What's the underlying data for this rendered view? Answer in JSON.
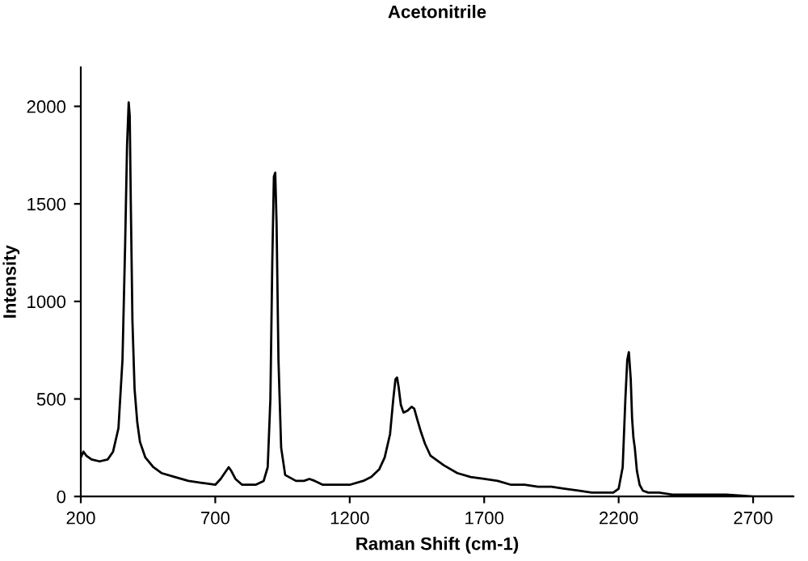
{
  "chart_data": {
    "type": "line",
    "title": "Acetonitrile",
    "xlabel": "Raman Shift (cm-1)",
    "ylabel": "Intensity",
    "xlim": [
      200,
      2850
    ],
    "ylim": [
      0,
      2200
    ],
    "xticks": [
      200,
      700,
      1200,
      1700,
      2200,
      2700
    ],
    "yticks": [
      0,
      500,
      1000,
      1500,
      2000
    ],
    "grid": false,
    "marker": "none",
    "line_style": "solid",
    "series": [
      {
        "color": "#000000",
        "x": [
          200,
          210,
          220,
          240,
          270,
          300,
          320,
          340,
          355,
          365,
          372,
          378,
          382,
          386,
          392,
          400,
          410,
          420,
          440,
          470,
          500,
          550,
          600,
          650,
          700,
          720,
          740,
          750,
          760,
          775,
          800,
          850,
          880,
          895,
          905,
          912,
          918,
          923,
          928,
          935,
          945,
          960,
          1000,
          1030,
          1050,
          1070,
          1100,
          1150,
          1200,
          1250,
          1280,
          1310,
          1330,
          1350,
          1362,
          1370,
          1376,
          1382,
          1390,
          1400,
          1415,
          1430,
          1440,
          1450,
          1465,
          1480,
          1500,
          1550,
          1600,
          1650,
          1700,
          1750,
          1800,
          1850,
          1900,
          1950,
          2000,
          2050,
          2100,
          2150,
          2180,
          2200,
          2215,
          2225,
          2232,
          2238,
          2245,
          2250,
          2255,
          2260,
          2268,
          2278,
          2290,
          2310,
          2350,
          2400,
          2500,
          2600,
          2700,
          2800,
          2850
        ],
        "values": [
          200,
          230,
          210,
          190,
          180,
          190,
          230,
          350,
          700,
          1300,
          1800,
          2020,
          1950,
          1500,
          900,
          550,
          380,
          280,
          200,
          150,
          120,
          100,
          80,
          70,
          60,
          90,
          130,
          150,
          130,
          90,
          60,
          60,
          80,
          150,
          500,
          1200,
          1640,
          1660,
          1400,
          700,
          250,
          110,
          80,
          80,
          90,
          80,
          60,
          60,
          60,
          80,
          100,
          140,
          200,
          320,
          500,
          600,
          610,
          560,
          470,
          430,
          440,
          460,
          450,
          400,
          330,
          270,
          210,
          160,
          120,
          100,
          90,
          80,
          60,
          60,
          50,
          50,
          40,
          30,
          20,
          20,
          20,
          40,
          150,
          500,
          700,
          740,
          600,
          400,
          300,
          250,
          130,
          60,
          30,
          20,
          20,
          10,
          10,
          10,
          0,
          0,
          0
        ]
      }
    ]
  }
}
